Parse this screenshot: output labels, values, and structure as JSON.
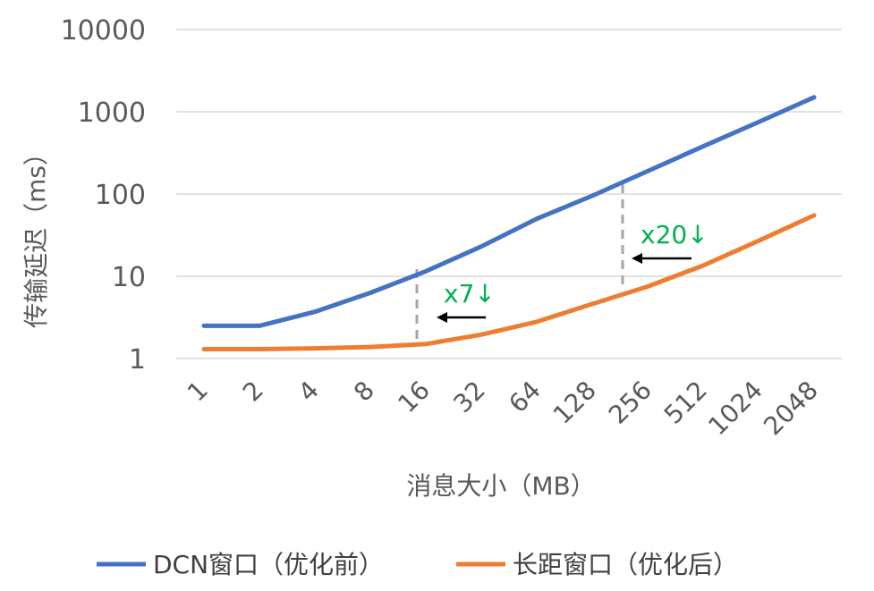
{
  "chart_data": {
    "type": "line",
    "categories": [
      "1",
      "2",
      "4",
      "8",
      "16",
      "32",
      "64",
      "128",
      "256",
      "512",
      "1024",
      "2048"
    ],
    "xlabel": "消息大小（MB）",
    "ylabel": "传输延迟（ms）",
    "yscale": "log",
    "ylim": [
      1,
      10000
    ],
    "yticks": [
      "1",
      "10",
      "100",
      "1000",
      "10000"
    ],
    "grid": true,
    "legend": "bottom",
    "series": [
      {
        "name": "DCN窗口（优化前）",
        "color": "#4472c4",
        "values": [
          2.5,
          2.5,
          3.7,
          6.3,
          11.5,
          23,
          50,
          95,
          190,
          380,
          750,
          1500
        ]
      },
      {
        "name": "长距窗口（优化后）",
        "color": "#ed7d31",
        "values": [
          1.3,
          1.3,
          1.33,
          1.38,
          1.5,
          1.95,
          2.8,
          4.6,
          7.5,
          13.5,
          27,
          55
        ]
      }
    ],
    "annotations": [
      {
        "text": "x7↓"
      },
      {
        "text": "x20↓"
      }
    ]
  }
}
